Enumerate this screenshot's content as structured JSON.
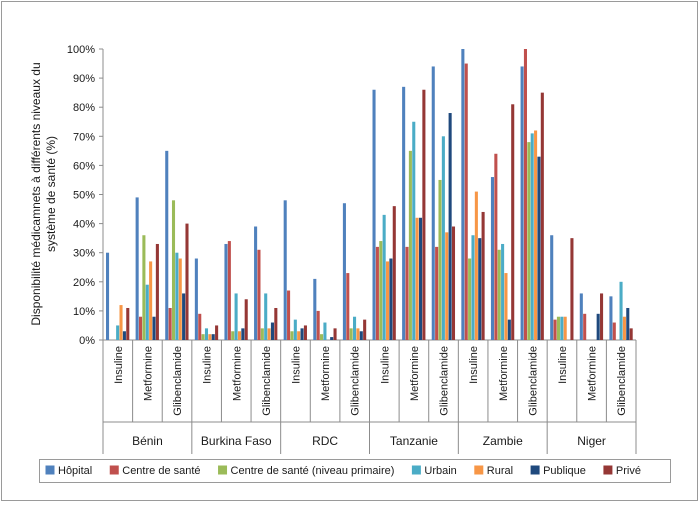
{
  "chart_data": {
    "type": "bar",
    "ylabel": "Disponibilité médicamnets à différents niveaux du système de santé (%)",
    "ylim": [
      0,
      100
    ],
    "yticks": [
      "0%",
      "10%",
      "20%",
      "30%",
      "40%",
      "50%",
      "60%",
      "70%",
      "80%",
      "90%",
      "100%"
    ],
    "grid": false,
    "legend_position": "bottom",
    "countries": [
      "Bénin",
      "Burkina Faso",
      "RDC",
      "Tanzanie",
      "Zambie",
      "Niger"
    ],
    "drugs": [
      "Insuline",
      "Metformine",
      "Glibenclamide"
    ],
    "series": [
      {
        "name": "Hôpital",
        "color": "#4f81bd",
        "values": [
          30,
          49,
          65,
          28,
          33,
          39,
          48,
          21,
          47,
          86,
          87,
          94,
          100,
          56,
          94,
          36,
          16,
          15
        ]
      },
      {
        "name": "Centre de santé",
        "color": "#c0504d",
        "values": [
          0,
          8,
          11,
          9,
          34,
          31,
          17,
          10,
          23,
          32,
          32,
          32,
          95,
          64,
          100,
          7,
          9,
          6
        ]
      },
      {
        "name": "Centre de santé (niveau primaire)",
        "color": "#9bbb59",
        "values": [
          0,
          36,
          48,
          2,
          3,
          4,
          3,
          2,
          4,
          34,
          65,
          55,
          28,
          31,
          68,
          8,
          0,
          0
        ]
      },
      {
        "name": "Urbain",
        "color": "#4bacc6",
        "values": [
          5,
          19,
          30,
          4,
          16,
          16,
          7,
          6,
          8,
          43,
          75,
          70,
          36,
          33,
          71,
          8,
          0,
          20
        ]
      },
      {
        "name": "Rural",
        "color": "#f79646",
        "values": [
          12,
          27,
          28,
          2,
          3,
          4,
          3,
          0,
          4,
          27,
          42,
          37,
          51,
          23,
          72,
          8,
          0,
          8
        ]
      },
      {
        "name": "Publique",
        "color": "#1f497d",
        "values": [
          3,
          8,
          16,
          2,
          4,
          6,
          4,
          1,
          3,
          28,
          42,
          78,
          35,
          7,
          63,
          0,
          9,
          11
        ]
      },
      {
        "name": "Privé",
        "color": "#953735",
        "values": [
          11,
          33,
          40,
          5,
          14,
          11,
          5,
          4,
          7,
          46,
          86,
          39,
          44,
          81,
          85,
          35,
          16,
          4
        ]
      }
    ]
  }
}
